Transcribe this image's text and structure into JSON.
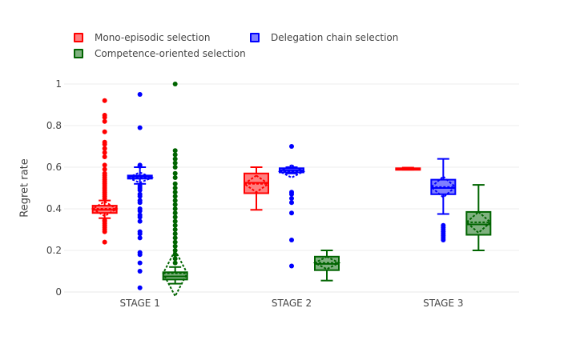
{
  "legend": [
    {
      "name": "Mono-episodic selection",
      "color": "#ff0000",
      "fill": "rgba(255,0,0,0.5)"
    },
    {
      "name": "Delegation chain selection",
      "color": "#0000ff",
      "fill": "rgba(0,0,255,0.5)"
    },
    {
      "name": "Competence-oriented selection",
      "color": "#006400",
      "fill": "rgba(0,100,0,0.5)"
    }
  ],
  "chart_data": {
    "type": "box",
    "ylabel": "Regret rate",
    "xlabel": "",
    "ylim": [
      0,
      1
    ],
    "yticks": [
      0,
      0.2,
      0.4,
      0.6,
      0.8,
      1
    ],
    "ytick_labels": [
      "0",
      "0.2",
      "0.4",
      "0.6",
      "0.8",
      "1"
    ],
    "categories": [
      "STAGE 1",
      "STAGE 2",
      "STAGE 3"
    ],
    "grid": true,
    "legend_position": "top-left",
    "series": [
      {
        "name": "Mono-episodic selection",
        "color": "#ff0000",
        "boxes": [
          {
            "category": "STAGE 1",
            "min": 0.355,
            "q1": 0.38,
            "median": 0.395,
            "q3": 0.415,
            "max": 0.44,
            "mean": 0.4,
            "sd": 0.035,
            "outliers": [
              0.92,
              0.85,
              0.84,
              0.82,
              0.77,
              0.72,
              0.71,
              0.69,
              0.67,
              0.65,
              0.61,
              0.59,
              0.57,
              0.56,
              0.55,
              0.54,
              0.53,
              0.52,
              0.51,
              0.5,
              0.49,
              0.48,
              0.47,
              0.46,
              0.45,
              0.345,
              0.34,
              0.33,
              0.32,
              0.31,
              0.3,
              0.29,
              0.24
            ]
          },
          {
            "category": "STAGE 2",
            "min": 0.395,
            "q1": 0.475,
            "median": 0.525,
            "q3": 0.57,
            "max": 0.6,
            "mean": 0.52,
            "sd": 0.04,
            "outliers": []
          },
          {
            "category": "STAGE 3",
            "min": 0.588,
            "q1": 0.588,
            "median": 0.592,
            "q3": 0.595,
            "max": 0.598,
            "mean": 0.592,
            "sd": 0.003,
            "outliers": []
          }
        ]
      },
      {
        "name": "Delegation chain selection",
        "color": "#0000ff",
        "boxes": [
          {
            "category": "STAGE 1",
            "min": 0.52,
            "q1": 0.545,
            "median": 0.555,
            "q3": 0.56,
            "max": 0.6,
            "mean": 0.55,
            "sd": 0.025,
            "outliers": [
              0.95,
              0.79,
              0.61,
              0.605,
              0.51,
              0.5,
              0.49,
              0.47,
              0.46,
              0.44,
              0.43,
              0.4,
              0.39,
              0.37,
              0.36,
              0.34,
              0.29,
              0.28,
              0.26,
              0.19,
              0.18,
              0.14,
              0.1,
              0.02
            ]
          },
          {
            "category": "STAGE 2",
            "min": 0.57,
            "q1": 0.575,
            "median": 0.585,
            "q3": 0.595,
            "max": 0.6,
            "mean": 0.58,
            "sd": 0.03,
            "outliers": [
              0.7,
              0.48,
              0.47,
              0.45,
              0.43,
              0.38,
              0.25,
              0.125
            ]
          },
          {
            "category": "STAGE 3",
            "min": 0.375,
            "q1": 0.47,
            "median": 0.5,
            "q3": 0.54,
            "max": 0.64,
            "mean": 0.505,
            "sd": 0.05,
            "outliers": [
              0.32,
              0.31,
              0.3,
              0.29,
              0.28,
              0.27,
              0.26,
              0.25
            ]
          }
        ]
      },
      {
        "name": "Competence-oriented selection",
        "color": "#006400",
        "boxes": [
          {
            "category": "STAGE 1",
            "min": 0.04,
            "q1": 0.06,
            "median": 0.075,
            "q3": 0.095,
            "max": 0.12,
            "mean": 0.09,
            "sd": 0.11,
            "outliers": [
              1.0,
              0.68,
              0.66,
              0.64,
              0.62,
              0.6,
              0.57,
              0.55,
              0.52,
              0.5,
              0.48,
              0.46,
              0.44,
              0.42,
              0.4,
              0.38,
              0.36,
              0.34,
              0.32,
              0.3,
              0.28,
              0.26,
              0.24,
              0.22,
              0.2,
              0.18,
              0.16,
              0.14
            ]
          },
          {
            "category": "STAGE 2",
            "min": 0.055,
            "q1": 0.105,
            "median": 0.135,
            "q3": 0.17,
            "max": 0.2,
            "mean": 0.14,
            "sd": 0.03,
            "outliers": []
          },
          {
            "category": "STAGE 3",
            "min": 0.2,
            "q1": 0.275,
            "median": 0.325,
            "q3": 0.385,
            "max": 0.515,
            "mean": 0.335,
            "sd": 0.05,
            "outliers": []
          }
        ]
      }
    ]
  }
}
